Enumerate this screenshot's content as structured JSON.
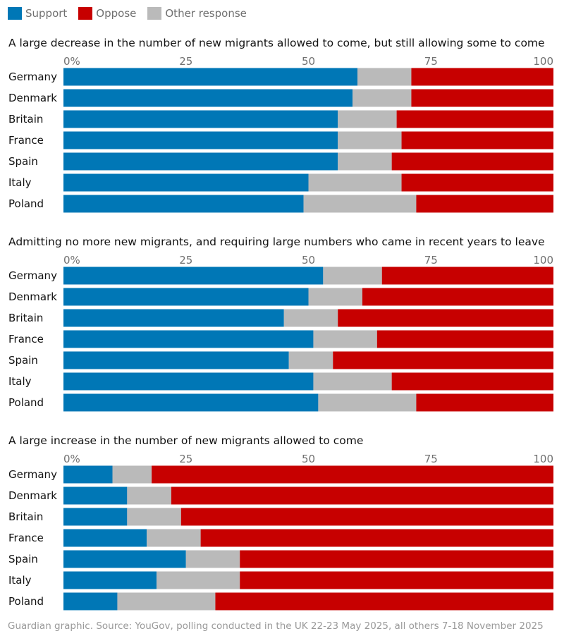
{
  "legend": [
    {
      "label": "Support",
      "color": "#0077b6"
    },
    {
      "label": "Oppose",
      "color": "#c70000"
    },
    {
      "label": "Other response",
      "color": "#bababa"
    }
  ],
  "chart_data": [
    {
      "type": "bar",
      "orientation": "horizontal-stacked",
      "title": "A large decrease in the number of new migrants allowed to come, but still allowing some to come",
      "categories": [
        "Germany",
        "Denmark",
        "Britain",
        "France",
        "Spain",
        "Italy",
        "Poland"
      ],
      "series": [
        {
          "name": "Support",
          "values": [
            60,
            59,
            56,
            56,
            56,
            50,
            49
          ]
        },
        {
          "name": "Other response",
          "values": [
            11,
            12,
            12,
            13,
            11,
            19,
            23
          ]
        },
        {
          "name": "Oppose",
          "values": [
            29,
            29,
            32,
            31,
            33,
            31,
            28
          ]
        }
      ],
      "xlim": [
        0,
        100
      ],
      "tick_labels": [
        "0%",
        "25",
        "50",
        "75",
        "100"
      ]
    },
    {
      "type": "bar",
      "orientation": "horizontal-stacked",
      "title": "Admitting no more new migrants, and requiring large numbers who came in recent years to leave",
      "categories": [
        "Germany",
        "Denmark",
        "Britain",
        "France",
        "Spain",
        "Italy",
        "Poland"
      ],
      "series": [
        {
          "name": "Support",
          "values": [
            53,
            50,
            45,
            51,
            46,
            51,
            52
          ]
        },
        {
          "name": "Other response",
          "values": [
            12,
            11,
            11,
            13,
            9,
            16,
            20
          ]
        },
        {
          "name": "Oppose",
          "values": [
            35,
            39,
            44,
            36,
            45,
            33,
            28
          ]
        }
      ],
      "xlim": [
        0,
        100
      ],
      "tick_labels": [
        "0%",
        "25",
        "50",
        "75",
        "100"
      ]
    },
    {
      "type": "bar",
      "orientation": "horizontal-stacked",
      "title": "A large increase in the number of new migrants allowed to come",
      "categories": [
        "Germany",
        "Denmark",
        "Britain",
        "France",
        "Spain",
        "Italy",
        "Poland"
      ],
      "series": [
        {
          "name": "Support",
          "values": [
            10,
            13,
            13,
            17,
            25,
            19,
            11
          ]
        },
        {
          "name": "Other response",
          "values": [
            8,
            9,
            11,
            11,
            11,
            17,
            20
          ]
        },
        {
          "name": "Oppose",
          "values": [
            82,
            78,
            76,
            72,
            64,
            64,
            69
          ]
        }
      ],
      "xlim": [
        0,
        100
      ],
      "tick_labels": [
        "0%",
        "25",
        "50",
        "75",
        "100"
      ]
    }
  ],
  "source": "Guardian graphic. Source: YouGov, polling conducted in the UK 22-23 May 2025, all others 7-18 November 2025"
}
